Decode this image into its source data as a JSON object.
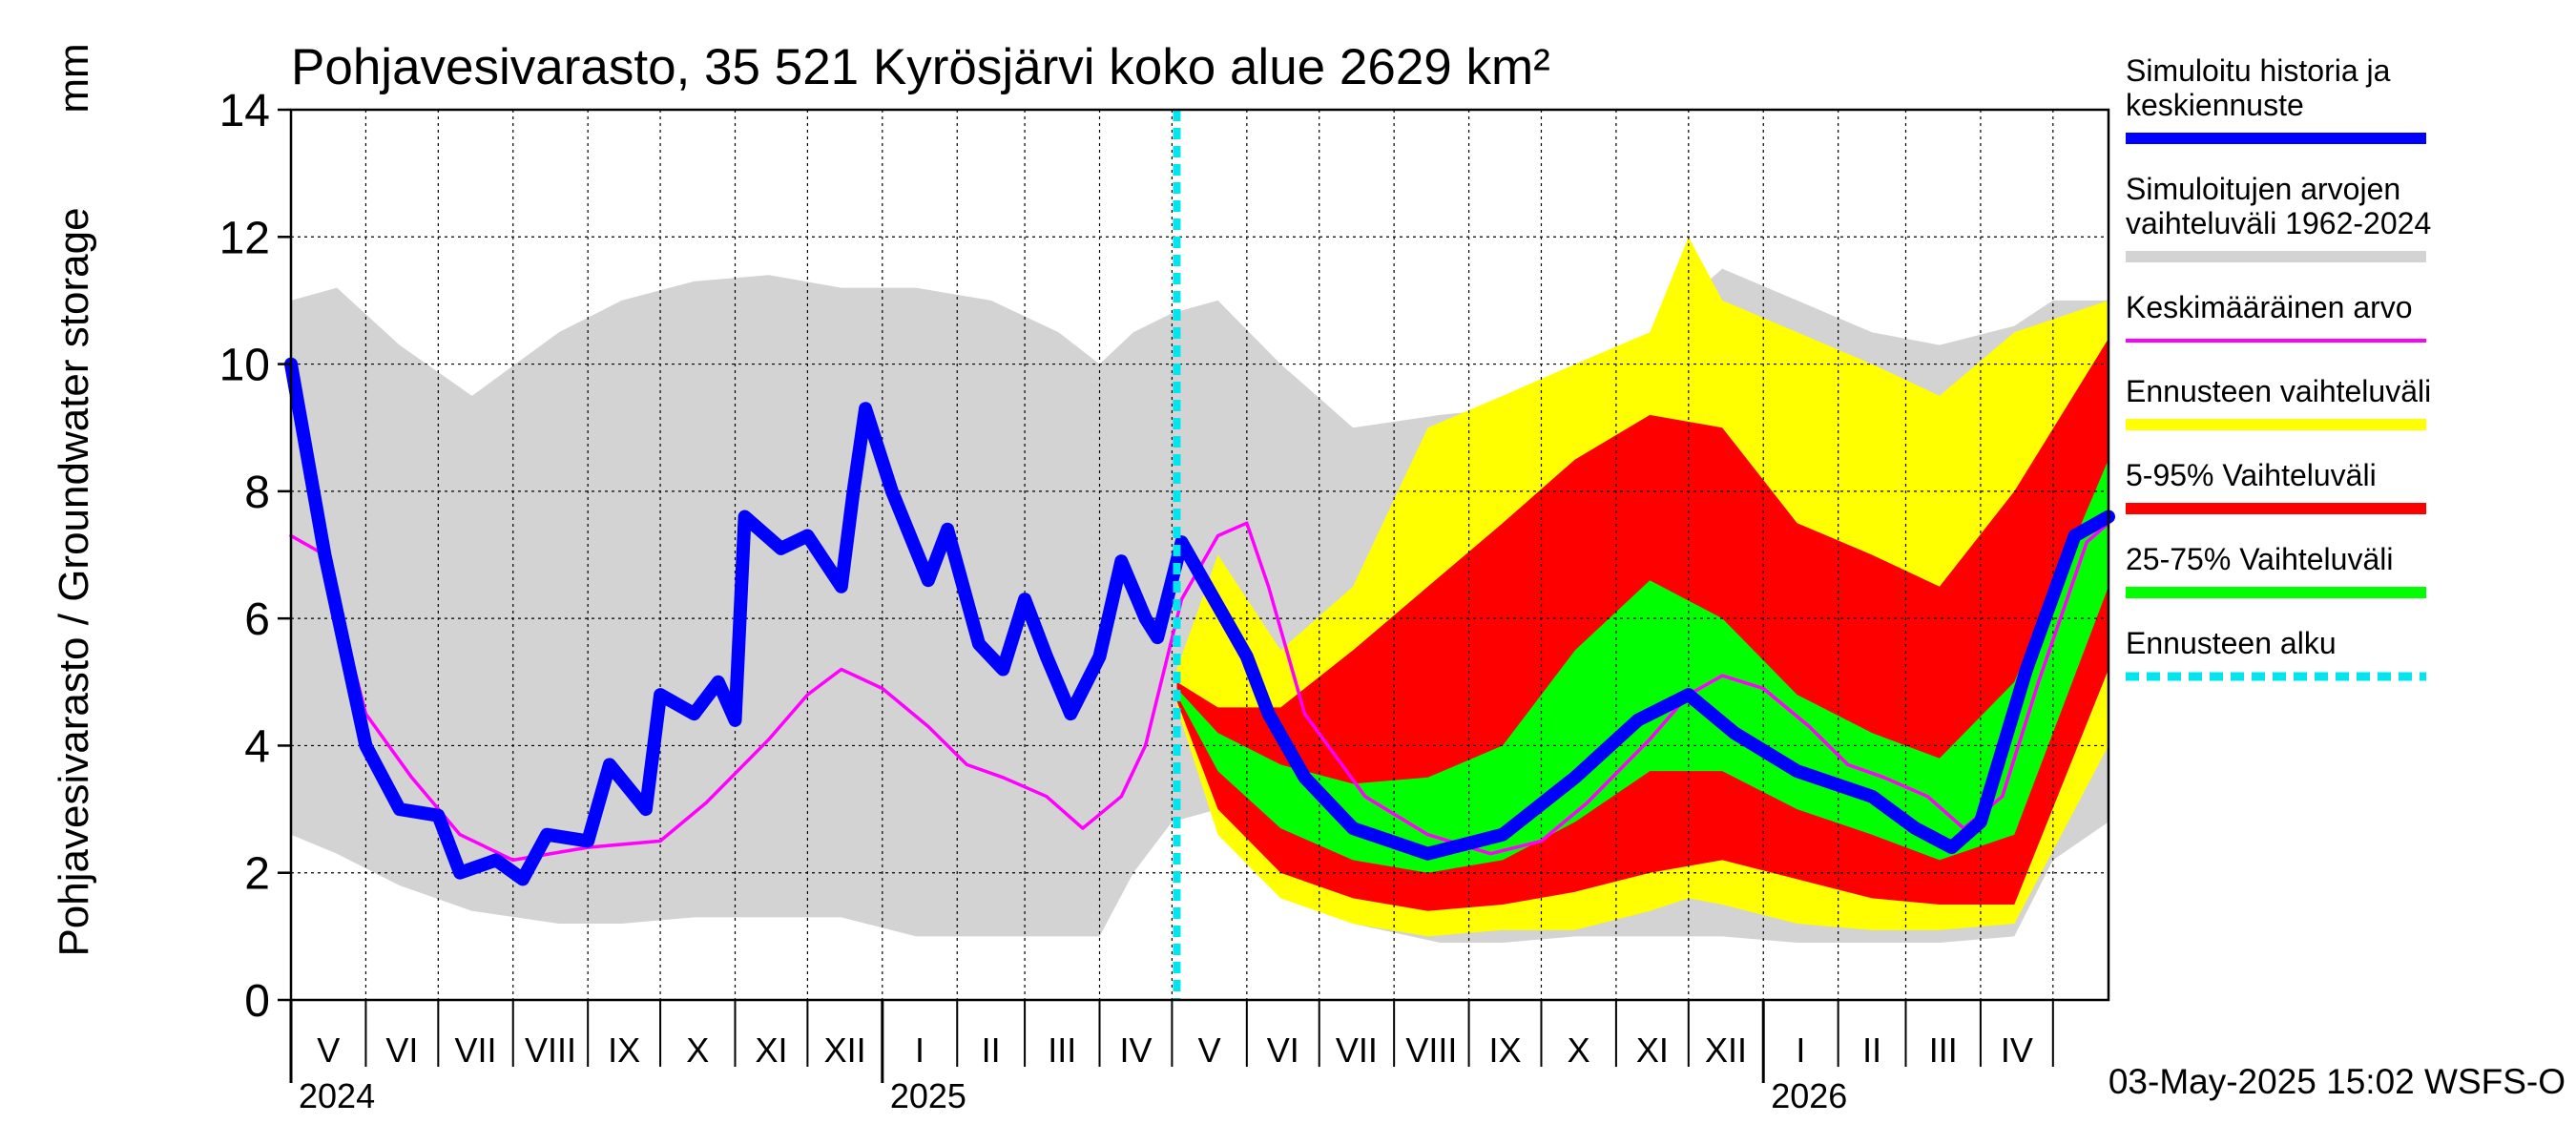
{
  "chart_data": {
    "type": "area",
    "title": "Pohjavesivarasto, 35 521 Kyrösjärvi koko alue 2629 km²",
    "ylabel": "Pohjavesivarasto / Groundwater storage",
    "yunit": "mm",
    "ylim": [
      0,
      14
    ],
    "yticks": [
      "0",
      "2",
      "4",
      "6",
      "8",
      "10",
      "12",
      "14"
    ],
    "grid": true,
    "legend_position": "right",
    "months": [
      "V",
      "VI",
      "VII",
      "VIII",
      "IX",
      "X",
      "XI",
      "XII",
      "I",
      "II",
      "III",
      "IV",
      "V",
      "VI",
      "VII",
      "VIII",
      "IX",
      "X",
      "XI",
      "XII",
      "I",
      "II",
      "III",
      "IV"
    ],
    "years": [
      {
        "label": "2024",
        "month_index": 0
      },
      {
        "label": "2025",
        "month_index": 8
      },
      {
        "label": "2026",
        "month_index": 20
      }
    ],
    "x_start": "2024-05-01",
    "x_end": "2026-05-24",
    "forecast_start": "2025-05-03",
    "timestamp": "03-May-2025 15:02 WSFS-O",
    "legend": [
      {
        "label": "Simuloitu historia ja keskiennuste",
        "color": "#0000ff"
      },
      {
        "label": "Simuloitujen arvojen vaihteluväli 1962-2024",
        "color": "#d3d3d3"
      },
      {
        "label": "Keskimääräinen arvo",
        "color": "#ff00ff"
      },
      {
        "label": "Ennusteen vaihteluväli",
        "color": "#ffff00"
      },
      {
        "label": "5-95% Vaihteluväli",
        "color": "#ff0000"
      },
      {
        "label": "25-75% Vaihteluväli",
        "color": "#00ff00"
      },
      {
        "label": "Ennusteen alku",
        "color": "#00e5ee"
      }
    ],
    "series": [
      {
        "name": "Simuloitu historia ja keskiennuste",
        "color": "#0000ff",
        "points": [
          [
            "2024-05-01",
            10.0
          ],
          [
            "2024-05-15",
            7.0
          ],
          [
            "2024-06-01",
            4.0
          ],
          [
            "2024-06-15",
            3.0
          ],
          [
            "2024-07-01",
            2.9
          ],
          [
            "2024-07-10",
            2.0
          ],
          [
            "2024-07-25",
            2.2
          ],
          [
            "2024-08-05",
            1.9
          ],
          [
            "2024-08-15",
            2.6
          ],
          [
            "2024-09-01",
            2.5
          ],
          [
            "2024-09-10",
            3.7
          ],
          [
            "2024-09-25",
            3.0
          ],
          [
            "2024-10-01",
            4.8
          ],
          [
            "2024-10-15",
            4.5
          ],
          [
            "2024-10-25",
            5.0
          ],
          [
            "2024-11-01",
            4.4
          ],
          [
            "2024-11-05",
            7.6
          ],
          [
            "2024-11-20",
            7.1
          ],
          [
            "2024-12-01",
            7.3
          ],
          [
            "2024-12-15",
            6.5
          ],
          [
            "2024-12-20",
            8.0
          ],
          [
            "2024-12-25",
            9.3
          ],
          [
            "2025-01-05",
            8.0
          ],
          [
            "2025-01-20",
            6.6
          ],
          [
            "2025-01-28",
            7.4
          ],
          [
            "2025-02-10",
            5.6
          ],
          [
            "2025-02-20",
            5.2
          ],
          [
            "2025-03-01",
            6.3
          ],
          [
            "2025-03-10",
            5.4
          ],
          [
            "2025-03-20",
            4.5
          ],
          [
            "2025-04-01",
            5.4
          ],
          [
            "2025-04-10",
            6.9
          ],
          [
            "2025-04-20",
            6.0
          ],
          [
            "2025-04-25",
            5.7
          ],
          [
            "2025-05-05",
            7.2
          ],
          [
            "2025-05-20",
            6.2
          ],
          [
            "2025-06-01",
            5.4
          ],
          [
            "2025-06-10",
            4.5
          ],
          [
            "2025-06-25",
            3.5
          ],
          [
            "2025-07-15",
            2.7
          ],
          [
            "2025-08-15",
            2.3
          ],
          [
            "2025-09-15",
            2.6
          ],
          [
            "2025-10-15",
            3.5
          ],
          [
            "2025-11-10",
            4.4
          ],
          [
            "2025-12-01",
            4.8
          ],
          [
            "2025-12-20",
            4.2
          ],
          [
            "2026-01-15",
            3.6
          ],
          [
            "2026-02-15",
            3.2
          ],
          [
            "2026-03-05",
            2.7
          ],
          [
            "2026-03-20",
            2.4
          ],
          [
            "2026-04-01",
            2.8
          ],
          [
            "2026-04-20",
            5.2
          ],
          [
            "2026-05-10",
            7.3
          ],
          [
            "2026-05-24",
            7.6
          ]
        ]
      },
      {
        "name": "Keskimääräinen arvo",
        "color": "#ff00ff",
        "points": [
          [
            "2024-05-01",
            7.3
          ],
          [
            "2024-05-15",
            7.0
          ],
          [
            "2024-06-01",
            4.5
          ],
          [
            "2024-06-20",
            3.5
          ],
          [
            "2024-07-10",
            2.6
          ],
          [
            "2024-08-01",
            2.2
          ],
          [
            "2024-09-01",
            2.4
          ],
          [
            "2024-10-01",
            2.5
          ],
          [
            "2024-10-20",
            3.1
          ],
          [
            "2024-11-15",
            4.1
          ],
          [
            "2024-12-01",
            4.8
          ],
          [
            "2024-12-15",
            5.2
          ],
          [
            "2025-01-01",
            4.9
          ],
          [
            "2025-01-20",
            4.3
          ],
          [
            "2025-02-05",
            3.7
          ],
          [
            "2025-02-20",
            3.5
          ],
          [
            "2025-03-10",
            3.2
          ],
          [
            "2025-03-25",
            2.7
          ],
          [
            "2025-04-10",
            3.2
          ],
          [
            "2025-04-20",
            4.0
          ],
          [
            "2025-05-05",
            6.3
          ],
          [
            "2025-05-20",
            7.3
          ],
          [
            "2025-06-01",
            7.5
          ],
          [
            "2025-06-10",
            6.5
          ],
          [
            "2025-06-25",
            4.5
          ],
          [
            "2025-07-20",
            3.2
          ],
          [
            "2025-08-15",
            2.6
          ],
          [
            "2025-09-10",
            2.3
          ],
          [
            "2025-10-01",
            2.5
          ],
          [
            "2025-10-20",
            3.1
          ],
          [
            "2025-11-15",
            4.1
          ],
          [
            "2025-12-01",
            4.8
          ],
          [
            "2025-12-15",
            5.1
          ],
          [
            "2026-01-01",
            4.9
          ],
          [
            "2026-01-20",
            4.3
          ],
          [
            "2026-02-05",
            3.7
          ],
          [
            "2026-02-20",
            3.5
          ],
          [
            "2026-03-10",
            3.2
          ],
          [
            "2026-03-25",
            2.7
          ],
          [
            "2026-04-10",
            3.2
          ],
          [
            "2026-04-25",
            5.0
          ],
          [
            "2026-05-15",
            7.2
          ],
          [
            "2026-05-24",
            7.5
          ]
        ]
      }
    ],
    "bands": [
      {
        "name": "Simuloitujen arvojen vaihteluväli 1962-2024",
        "color": "#d3d3d3",
        "points": [
          [
            "2024-05-01",
            2.6,
            11.0
          ],
          [
            "2024-05-20",
            2.3,
            11.2
          ],
          [
            "2024-06-15",
            1.8,
            10.3
          ],
          [
            "2024-07-15",
            1.4,
            9.5
          ],
          [
            "2024-08-20",
            1.2,
            10.5
          ],
          [
            "2024-09-15",
            1.2,
            11.0
          ],
          [
            "2024-10-15",
            1.3,
            11.3
          ],
          [
            "2024-11-15",
            1.3,
            11.4
          ],
          [
            "2024-12-15",
            1.3,
            11.2
          ],
          [
            "2025-01-15",
            1.0,
            11.2
          ],
          [
            "2025-02-15",
            1.0,
            11.0
          ],
          [
            "2025-03-15",
            1.0,
            10.5
          ],
          [
            "2025-04-01",
            1.0,
            10.0
          ],
          [
            "2025-04-15",
            2.0,
            10.5
          ],
          [
            "2025-05-01",
            2.8,
            10.8
          ],
          [
            "2025-05-20",
            3.0,
            11.0
          ],
          [
            "2025-06-15",
            2.0,
            10.0
          ],
          [
            "2025-07-15",
            1.2,
            9.0
          ],
          [
            "2025-08-20",
            0.9,
            9.2
          ],
          [
            "2025-09-15",
            0.9,
            9.3
          ],
          [
            "2025-10-15",
            1.0,
            9.8
          ],
          [
            "2025-11-15",
            1.0,
            10.5
          ],
          [
            "2025-12-15",
            1.0,
            11.5
          ],
          [
            "2026-01-15",
            0.9,
            11.0
          ],
          [
            "2026-02-15",
            0.9,
            10.5
          ],
          [
            "2026-03-15",
            0.9,
            10.3
          ],
          [
            "2026-04-15",
            1.0,
            10.6
          ],
          [
            "2026-05-01",
            2.2,
            11.0
          ],
          [
            "2026-05-24",
            2.8,
            11.0
          ]
        ]
      },
      {
        "name": "Ennusteen vaihteluväli",
        "color": "#ffff00",
        "points": [
          [
            "2025-05-03",
            4.6,
            5.2
          ],
          [
            "2025-05-20",
            2.6,
            7.0
          ],
          [
            "2025-06-15",
            1.6,
            5.5
          ],
          [
            "2025-07-15",
            1.2,
            6.5
          ],
          [
            "2025-08-15",
            1.0,
            9.0
          ],
          [
            "2025-09-15",
            1.1,
            9.5
          ],
          [
            "2025-10-15",
            1.1,
            10.0
          ],
          [
            "2025-11-15",
            1.4,
            10.5
          ],
          [
            "2025-12-01",
            1.6,
            12.0
          ],
          [
            "2025-12-15",
            1.5,
            11.0
          ],
          [
            "2026-01-15",
            1.2,
            10.5
          ],
          [
            "2026-02-15",
            1.1,
            10.0
          ],
          [
            "2026-03-15",
            1.1,
            9.5
          ],
          [
            "2026-04-15",
            1.2,
            10.5
          ],
          [
            "2026-05-24",
            4.0,
            11.0
          ]
        ]
      },
      {
        "name": "5-95% Vaihteluväli",
        "color": "#ff0000",
        "points": [
          [
            "2025-05-03",
            4.7,
            5.0
          ],
          [
            "2025-05-20",
            3.0,
            4.6
          ],
          [
            "2025-06-15",
            2.0,
            4.6
          ],
          [
            "2025-07-15",
            1.6,
            5.5
          ],
          [
            "2025-08-15",
            1.4,
            6.5
          ],
          [
            "2025-09-15",
            1.5,
            7.5
          ],
          [
            "2025-10-15",
            1.7,
            8.5
          ],
          [
            "2025-11-15",
            2.0,
            9.2
          ],
          [
            "2025-12-15",
            2.2,
            9.0
          ],
          [
            "2026-01-15",
            1.9,
            7.5
          ],
          [
            "2026-02-15",
            1.6,
            7.0
          ],
          [
            "2026-03-15",
            1.5,
            6.5
          ],
          [
            "2026-04-15",
            1.5,
            8.0
          ],
          [
            "2026-05-24",
            5.2,
            10.4
          ]
        ]
      },
      {
        "name": "25-75% Vaihteluväli",
        "color": "#00ff00",
        "points": [
          [
            "2025-05-03",
            4.8,
            4.9
          ],
          [
            "2025-05-20",
            3.6,
            4.2
          ],
          [
            "2025-06-15",
            2.7,
            3.7
          ],
          [
            "2025-07-15",
            2.2,
            3.4
          ],
          [
            "2025-08-15",
            2.0,
            3.5
          ],
          [
            "2025-09-15",
            2.2,
            4.0
          ],
          [
            "2025-10-15",
            2.8,
            5.5
          ],
          [
            "2025-11-15",
            3.6,
            6.6
          ],
          [
            "2025-12-15",
            3.6,
            6.0
          ],
          [
            "2026-01-15",
            3.0,
            4.8
          ],
          [
            "2026-02-15",
            2.6,
            4.2
          ],
          [
            "2026-03-15",
            2.2,
            3.8
          ],
          [
            "2026-04-15",
            2.6,
            5.0
          ],
          [
            "2026-05-24",
            6.5,
            8.5
          ]
        ]
      }
    ]
  }
}
